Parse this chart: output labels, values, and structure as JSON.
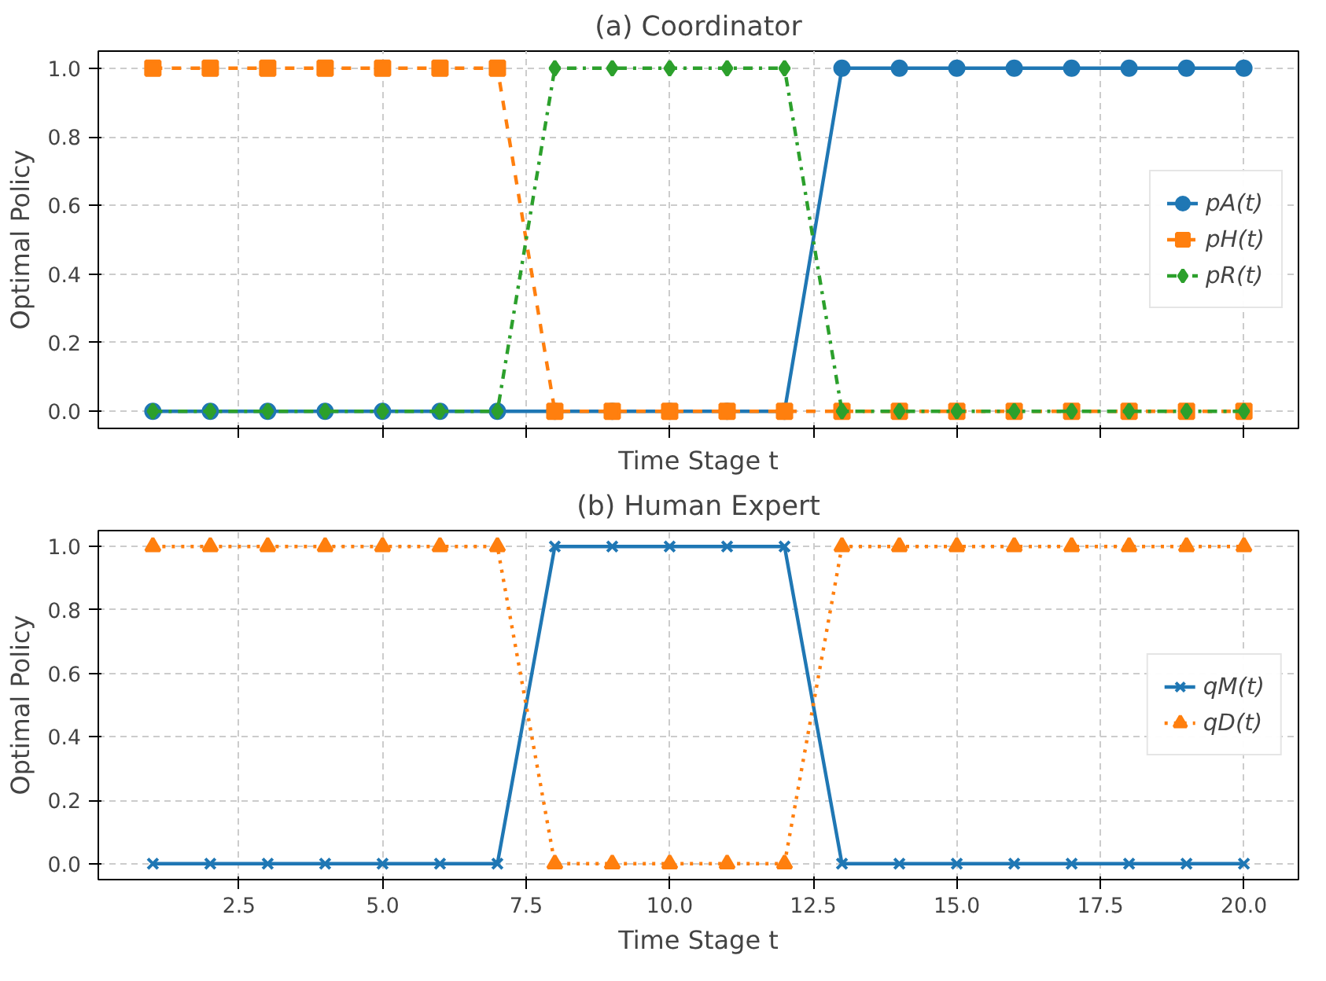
{
  "chart_data": [
    {
      "type": "line",
      "title": "(a) Coordinator",
      "xlabel": "Time Stage t",
      "ylabel": "Optimal Policy",
      "x": [
        1,
        2,
        3,
        4,
        5,
        6,
        7,
        8,
        9,
        10,
        11,
        12,
        13,
        14,
        15,
        16,
        17,
        18,
        19,
        20
      ],
      "xlim": [
        0.05,
        20.95
      ],
      "ylim": [
        -0.05,
        1.05
      ],
      "xticks": [
        {
          "value": 2.5,
          "label": null
        },
        {
          "value": 5,
          "label": null
        },
        {
          "value": 7.5,
          "label": null
        },
        {
          "value": 10,
          "label": null
        },
        {
          "value": 12.5,
          "label": null
        },
        {
          "value": 15,
          "label": null
        },
        {
          "value": 17.5,
          "label": null
        },
        {
          "value": 20,
          "label": null
        }
      ],
      "yticks": [
        {
          "value": 0,
          "label": "0.0"
        },
        {
          "value": 0.2,
          "label": "0.2"
        },
        {
          "value": 0.4,
          "label": "0.4"
        },
        {
          "value": 0.6,
          "label": "0.6"
        },
        {
          "value": 0.8,
          "label": "0.8"
        },
        {
          "value": 1,
          "label": "1.0"
        }
      ],
      "tick_labels": "y",
      "grid": true,
      "legend": "right",
      "series": [
        {
          "name": "pA(t)",
          "color": "#1f77b4",
          "marker": "circle",
          "line_style": "solid",
          "values": [
            0,
            0,
            0,
            0,
            0,
            0,
            0,
            0,
            0,
            0,
            0,
            0,
            1,
            1,
            1,
            1,
            1,
            1,
            1,
            1
          ]
        },
        {
          "name": "pH(t)",
          "color": "#ff7f0e",
          "marker": "square",
          "line_style": "dashed",
          "values": [
            1,
            1,
            1,
            1,
            1,
            1,
            1,
            0,
            0,
            0,
            0,
            0,
            0,
            0,
            0,
            0,
            0,
            0,
            0,
            0
          ]
        },
        {
          "name": "pR(t)",
          "color": "#2ca02c",
          "marker": "diamond",
          "line_style": "dashdot",
          "values": [
            0,
            0,
            0,
            0,
            0,
            0,
            0,
            1,
            1,
            1,
            1,
            1,
            0,
            0,
            0,
            0,
            0,
            0,
            0,
            0
          ]
        }
      ]
    },
    {
      "type": "line",
      "title": "(b) Human Expert",
      "xlabel": "Time Stage t",
      "ylabel": "Optimal Policy",
      "x": [
        1,
        2,
        3,
        4,
        5,
        6,
        7,
        8,
        9,
        10,
        11,
        12,
        13,
        14,
        15,
        16,
        17,
        18,
        19,
        20
      ],
      "xlim": [
        0.05,
        20.95
      ],
      "ylim": [
        -0.05,
        1.05
      ],
      "xticks": [
        {
          "value": 2.5,
          "label": "2.5"
        },
        {
          "value": 5,
          "label": "5.0"
        },
        {
          "value": 7.5,
          "label": "7.5"
        },
        {
          "value": 10,
          "label": "10.0"
        },
        {
          "value": 12.5,
          "label": "12.5"
        },
        {
          "value": 15,
          "label": "15.0"
        },
        {
          "value": 17.5,
          "label": "17.5"
        },
        {
          "value": 20,
          "label": "20.0"
        }
      ],
      "yticks": [
        {
          "value": 0,
          "label": "0.0"
        },
        {
          "value": 0.2,
          "label": "0.2"
        },
        {
          "value": 0.4,
          "label": "0.4"
        },
        {
          "value": 0.6,
          "label": "0.6"
        },
        {
          "value": 0.8,
          "label": "0.8"
        },
        {
          "value": 1,
          "label": "1.0"
        }
      ],
      "grid": true,
      "legend": "right",
      "series": [
        {
          "name": "qM(t)",
          "color": "#1f77b4",
          "marker": "cross",
          "line_style": "solid",
          "values": [
            0,
            0,
            0,
            0,
            0,
            0,
            0,
            1,
            1,
            1,
            1,
            1,
            0,
            0,
            0,
            0,
            0,
            0,
            0,
            0
          ]
        },
        {
          "name": "qD(t)",
          "color": "#ff7f0e",
          "marker": "triangle",
          "line_style": "dotted",
          "values": [
            1,
            1,
            1,
            1,
            1,
            1,
            1,
            0,
            0,
            0,
            0,
            0,
            1,
            1,
            1,
            1,
            1,
            1,
            1,
            1
          ]
        }
      ]
    }
  ]
}
